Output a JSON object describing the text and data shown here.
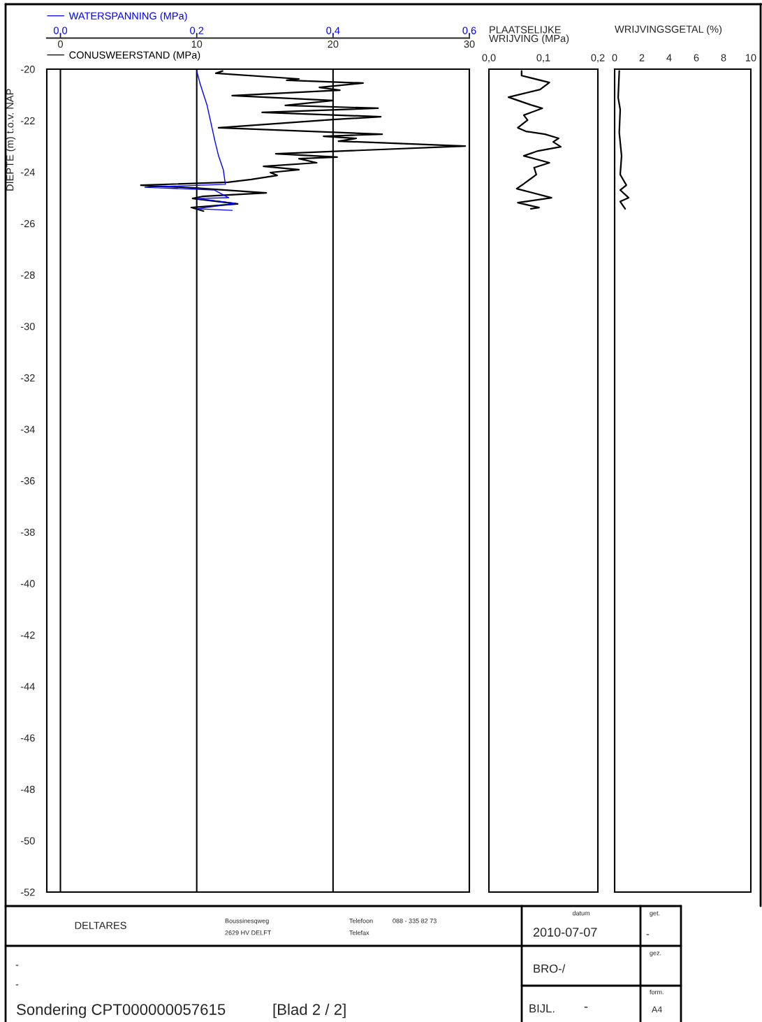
{
  "chart_data": [
    {
      "type": "line",
      "orientation": "horizontal",
      "ylabel": "DIEPTE (m) t.o.v. NAP",
      "xlim": [
        -1,
        30
      ],
      "xticks": [
        0,
        10,
        20,
        30
      ],
      "x2lim": [
        -0.02,
        0.6
      ],
      "x2ticks": [
        {
          "value": 0,
          "label": "0,0"
        },
        {
          "value": 0.2,
          "label": "0,2"
        },
        {
          "value": 0.4,
          "label": "0,4"
        },
        {
          "value": 0.6,
          "label": "0,6"
        }
      ],
      "ylim": [
        -52,
        -20
      ],
      "yticks": [
        -20,
        -22,
        -24,
        -26,
        -28,
        -30,
        -32,
        -34,
        -36,
        -38,
        -40,
        -42,
        -44,
        -46,
        -48,
        -50,
        -52
      ],
      "grid": "x",
      "legend": "top",
      "series": [
        {
          "name": "WATERSPANNING (MPa)",
          "color": "#0000ff",
          "axis": "x2",
          "x": [
            -20.07,
            -20.57,
            -21.39,
            -22.47,
            -22.83,
            -23.37,
            -23.91,
            -24.48,
            -24.59,
            -24.7,
            -25.0,
            -25.03,
            -25.22,
            -25.43,
            -25.49
          ],
          "values": [
            0.2,
            0.205,
            0.215,
            0.224,
            0.227,
            0.232,
            0.239,
            0.242,
            0.124,
            0.226,
            0.247,
            0.201,
            0.257,
            0.201,
            0.252
          ]
        },
        {
          "name": "CONUSWEERSTAND (MPa)",
          "color": "#000000",
          "x": [
            -20.07,
            -20.16,
            -20.38,
            -20.43,
            -20.54,
            -20.71,
            -20.82,
            -21.03,
            -21.22,
            -21.41,
            -21.52,
            -21.68,
            -21.85,
            -21.96,
            -22.28,
            -22.53,
            -22.61,
            -22.69,
            -22.8,
            -22.99,
            -23.29,
            -23.42,
            -23.48,
            -23.64,
            -23.78,
            -23.91,
            -24.02,
            -24.13,
            -24.29,
            -24.4,
            -24.51,
            -24.62,
            -24.81,
            -24.95,
            -25.03,
            -25.24,
            -25.38,
            -25.52
          ],
          "values": [
            11.9,
            11.4,
            17.5,
            16.6,
            22.2,
            19.0,
            20.5,
            12.6,
            20.0,
            16.5,
            23.3,
            14.8,
            23.5,
            20.0,
            11.6,
            23.6,
            19.3,
            21.7,
            20.4,
            29.7,
            15.8,
            20.3,
            17.5,
            18.8,
            14.9,
            17.5,
            15.4,
            15.9,
            14.0,
            12.3,
            5.9,
            9.9,
            15.1,
            10.4,
            9.7,
            13.0,
            9.6,
            10.5
          ]
        }
      ]
    },
    {
      "type": "line",
      "orientation": "horizontal",
      "xlabel": "PLAATSELIJKE\nWRIJVING (MPa)",
      "xlim": [
        0,
        0.2
      ],
      "xticks": [
        {
          "value": 0,
          "label": "0,0"
        },
        {
          "value": 0.1,
          "label": "0,1"
        },
        {
          "value": 0.2,
          "label": "0,2"
        }
      ],
      "ylim": [
        -52,
        -20
      ],
      "tick_labels": "x",
      "series": [
        {
          "color": "#000000",
          "x": [
            -20.07,
            -20.25,
            -20.52,
            -20.79,
            -21.09,
            -21.39,
            -21.52,
            -21.79,
            -21.98,
            -22.28,
            -22.42,
            -22.53,
            -22.69,
            -22.83,
            -23.02,
            -23.18,
            -23.37,
            -23.64,
            -23.83,
            -24.1,
            -24.46,
            -24.65,
            -25.0,
            -25.19,
            -25.38,
            -25.43
          ],
          "values": [
            0.06,
            0.06,
            0.111,
            0.094,
            0.036,
            0.077,
            0.098,
            0.064,
            0.071,
            0.053,
            0.068,
            0.103,
            0.128,
            0.118,
            0.132,
            0.09,
            0.064,
            0.111,
            0.083,
            0.087,
            0.064,
            0.051,
            0.115,
            0.053,
            0.092,
            0.077
          ]
        }
      ]
    },
    {
      "type": "line",
      "orientation": "horizontal",
      "xlabel": "WRIJVINGSGETAL (%)",
      "xlim": [
        0,
        10
      ],
      "xticks": [
        0,
        2,
        4,
        6,
        8,
        10
      ],
      "ylim": [
        -52,
        -20
      ],
      "tick_labels": "x",
      "series": [
        {
          "color": "#000000",
          "x": [
            -20.07,
            -21.11,
            -21.57,
            -22.47,
            -23.37,
            -24.1,
            -24.51,
            -24.7,
            -25.0,
            -25.15,
            -25.43
          ],
          "values": [
            0.34,
            0.26,
            0.41,
            0.34,
            0.51,
            0.41,
            0.86,
            0.41,
            1.03,
            0.41,
            0.77
          ]
        }
      ]
    },
    {
      "type": "other",
      "annotations": [
        "DELTARES",
        "Boussinesqweg",
        "2629 HV DELFT",
        "Telefoon",
        "088 - 335 82 73",
        "Telefax",
        "datum",
        "2010-07-07",
        "get.",
        "-",
        "-",
        "-",
        "BRO-/",
        "gez.",
        "BIJL.",
        "-",
        "form.",
        "A4",
        "Sondering CPT000000057615",
        "[Blad 2 / 2]"
      ]
    }
  ]
}
